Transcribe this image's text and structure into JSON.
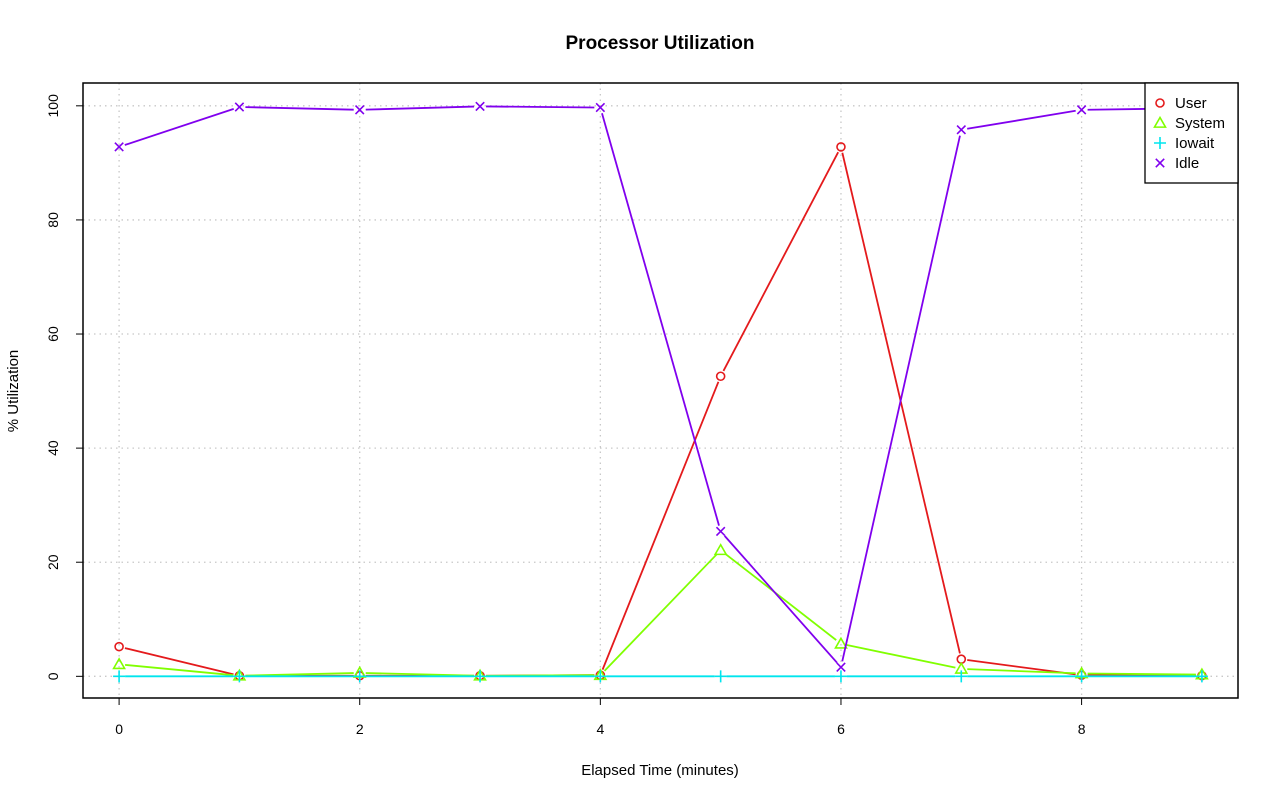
{
  "chart_data": {
    "type": "line",
    "title": "Processor Utilization",
    "xlabel": "Elapsed Time (minutes)",
    "ylabel": "% Utilization",
    "xlim": [
      -0.3,
      9.3
    ],
    "ylim": [
      -3.8,
      104
    ],
    "x_ticks": [
      0,
      2,
      4,
      6,
      8
    ],
    "y_ticks": [
      0,
      20,
      40,
      60,
      80,
      100
    ],
    "grid": true,
    "legend_position": "top-right",
    "x": [
      0,
      1,
      2,
      3,
      4,
      5,
      6,
      7,
      8,
      9
    ],
    "series": [
      {
        "name": "User",
        "color": "#e41a1c",
        "marker": "circle",
        "values": [
          5.2,
          0.1,
          0.1,
          0.1,
          0.2,
          52.6,
          92.8,
          3.0,
          0.2,
          0.1
        ]
      },
      {
        "name": "System",
        "color": "#80ff00",
        "marker": "triangle",
        "values": [
          2.1,
          0.1,
          0.6,
          0.1,
          0.2,
          22.1,
          5.7,
          1.3,
          0.5,
          0.3
        ]
      },
      {
        "name": "Iowait",
        "color": "#00e5ee",
        "marker": "plus",
        "values": [
          0,
          0,
          0,
          0,
          0,
          0,
          0,
          0,
          0,
          0
        ]
      },
      {
        "name": "Idle",
        "color": "#8000ee",
        "marker": "x",
        "values": [
          92.8,
          99.8,
          99.3,
          99.9,
          99.7,
          25.4,
          1.6,
          95.8,
          99.3,
          99.6
        ]
      }
    ]
  }
}
